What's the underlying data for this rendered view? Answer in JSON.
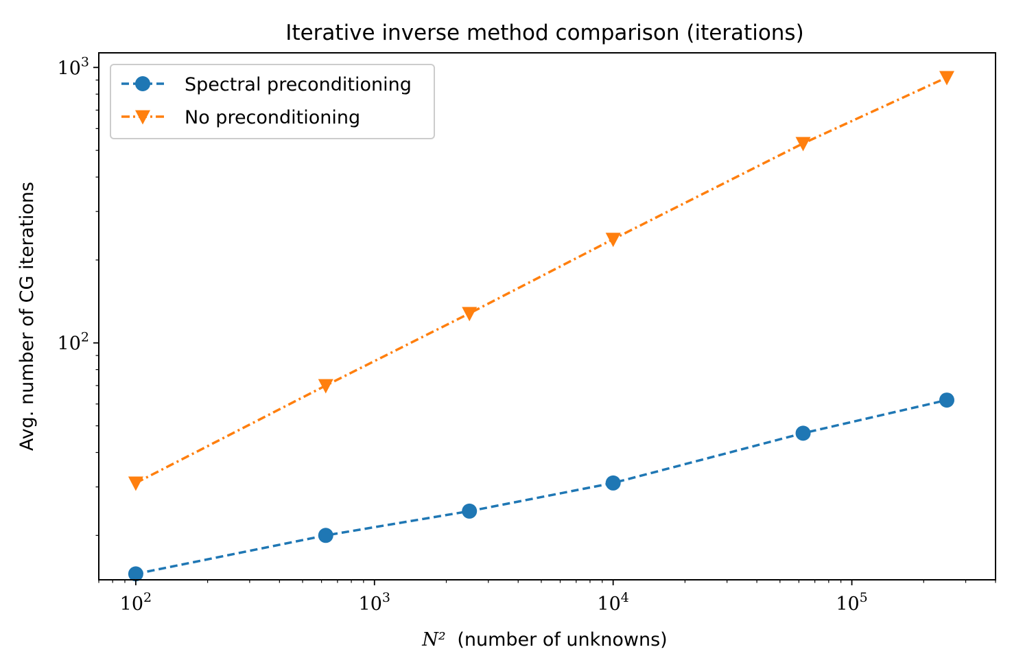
{
  "chart_data": {
    "type": "line",
    "title": "Iterative inverse method comparison (iterations)",
    "xlabel_math": "N²",
    "xlabel_text": "(number of unknowns)",
    "ylabel": "Avg. number of CG iterations",
    "xscale": "log",
    "yscale": "log",
    "xlim": [
      70,
      400000
    ],
    "ylim": [
      13.8,
      1130
    ],
    "grid": false,
    "legend_position": "top-left",
    "x": [
      100,
      625,
      2500,
      10000,
      62500,
      250000
    ],
    "series": [
      {
        "name": "Spectral preconditioning",
        "values": [
          14.5,
          20.0,
          24.5,
          31.0,
          47.0,
          62.0
        ],
        "color": "#1f77b4",
        "line_style": "dashed",
        "marker": "circle"
      },
      {
        "name": "No preconditioning",
        "values": [
          31.0,
          70.0,
          128.0,
          238.0,
          530.0,
          920.0
        ],
        "color": "#ff7f0e",
        "line_style": "dash-dot",
        "marker": "triangle-down"
      }
    ],
    "x_ticks": [
      {
        "value": 100,
        "base": "10",
        "exp": "2"
      },
      {
        "value": 1000,
        "base": "10",
        "exp": "3"
      },
      {
        "value": 10000,
        "base": "10",
        "exp": "4"
      },
      {
        "value": 100000,
        "base": "10",
        "exp": "5"
      }
    ],
    "y_ticks": [
      {
        "value": 100,
        "base": "10",
        "exp": "2"
      },
      {
        "value": 1000,
        "base": "10",
        "exp": "3"
      }
    ]
  }
}
